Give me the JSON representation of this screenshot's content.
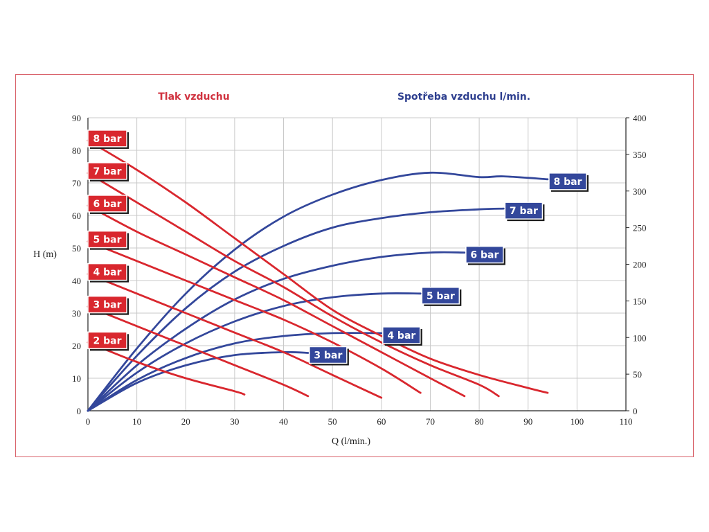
{
  "header": {
    "left_title": "Tlak vzduchu",
    "right_title": "Spotřeba vzduchu l/min.",
    "left_color": "#d0323f",
    "right_color": "#2e3f8f"
  },
  "chart_data": {
    "type": "line",
    "xlabel": "Q (l/min.)",
    "ylabel_left": "H (m)",
    "ylabel_right": "",
    "xlim": [
      0,
      110
    ],
    "ylim_left": [
      0,
      90
    ],
    "ylim_right": [
      0,
      400
    ],
    "x_ticks": [
      0,
      10,
      20,
      30,
      40,
      50,
      60,
      70,
      80,
      90,
      100,
      110
    ],
    "y_ticks_left": [
      0,
      10,
      20,
      30,
      40,
      50,
      60,
      70,
      80,
      90
    ],
    "y_ticks_right": [
      0,
      50,
      100,
      150,
      200,
      250,
      300,
      350,
      400
    ],
    "grid": true,
    "pressure_series": [
      {
        "name": "8 bar",
        "axis": "left",
        "x": [
          0,
          10,
          20,
          30,
          40,
          50,
          60,
          70,
          80,
          90,
          94
        ],
        "y": [
          83,
          74,
          64,
          53,
          42,
          31,
          23,
          16,
          11,
          7,
          5.5
        ]
      },
      {
        "name": "7 bar",
        "axis": "left",
        "x": [
          0,
          10,
          20,
          30,
          40,
          50,
          60,
          70,
          80,
          84
        ],
        "y": [
          73,
          64,
          55,
          46,
          38,
          29,
          21,
          14,
          8,
          4.5
        ]
      },
      {
        "name": "6 bar",
        "axis": "left",
        "x": [
          0,
          10,
          20,
          30,
          40,
          50,
          60,
          70,
          77
        ],
        "y": [
          63,
          55,
          48,
          41,
          34,
          26,
          18,
          10,
          4.5
        ]
      },
      {
        "name": "5 bar",
        "axis": "left",
        "x": [
          0,
          10,
          20,
          30,
          40,
          50,
          60,
          68
        ],
        "y": [
          52,
          46,
          40,
          34,
          28,
          21,
          13,
          5.5
        ]
      },
      {
        "name": "4 bar",
        "axis": "left",
        "x": [
          0,
          10,
          20,
          30,
          40,
          50,
          60
        ],
        "y": [
          42,
          36,
          30,
          24,
          18,
          11,
          4
        ]
      },
      {
        "name": "3 bar",
        "axis": "left",
        "x": [
          0,
          10,
          20,
          30,
          40,
          45
        ],
        "y": [
          32,
          26,
          20,
          14,
          8,
          4.5
        ]
      },
      {
        "name": "2 bar",
        "axis": "left",
        "x": [
          0,
          10,
          20,
          30,
          32
        ],
        "y": [
          21,
          15,
          10,
          6,
          5
        ]
      }
    ],
    "consumption_series": [
      {
        "name": "8 bar",
        "axis": "right",
        "x": [
          0,
          10,
          20,
          30,
          40,
          50,
          60,
          70,
          80,
          85,
          94
        ],
        "y": [
          0,
          85,
          160,
          220,
          265,
          295,
          315,
          325,
          319,
          320,
          316
        ]
      },
      {
        "name": "7 bar",
        "axis": "right",
        "x": [
          0,
          10,
          20,
          30,
          40,
          50,
          60,
          70,
          80,
          85
        ],
        "y": [
          0,
          75,
          140,
          190,
          225,
          250,
          263,
          271,
          275,
          276
        ]
      },
      {
        "name": "6 bar",
        "axis": "right",
        "x": [
          0,
          10,
          20,
          30,
          40,
          50,
          60,
          70,
          77
        ],
        "y": [
          0,
          62,
          112,
          152,
          180,
          198,
          210,
          216,
          216
        ]
      },
      {
        "name": "5 bar",
        "axis": "right",
        "x": [
          0,
          10,
          20,
          30,
          40,
          50,
          60,
          68
        ],
        "y": [
          0,
          52,
          92,
          122,
          143,
          155,
          160,
          160
        ]
      },
      {
        "name": "4 bar",
        "axis": "right",
        "x": [
          0,
          10,
          20,
          30,
          40,
          50,
          60
        ],
        "y": [
          0,
          42,
          72,
          92,
          102,
          106,
          106
        ]
      },
      {
        "name": "3 bar",
        "axis": "right",
        "x": [
          0,
          10,
          20,
          30,
          40,
          45
        ],
        "y": [
          0,
          38,
          62,
          76,
          80,
          79
        ]
      }
    ],
    "colors": {
      "pressure": "#d9272e",
      "consumption": "#33479b",
      "grid": "#c8c8c8",
      "axis": "#222222"
    }
  }
}
